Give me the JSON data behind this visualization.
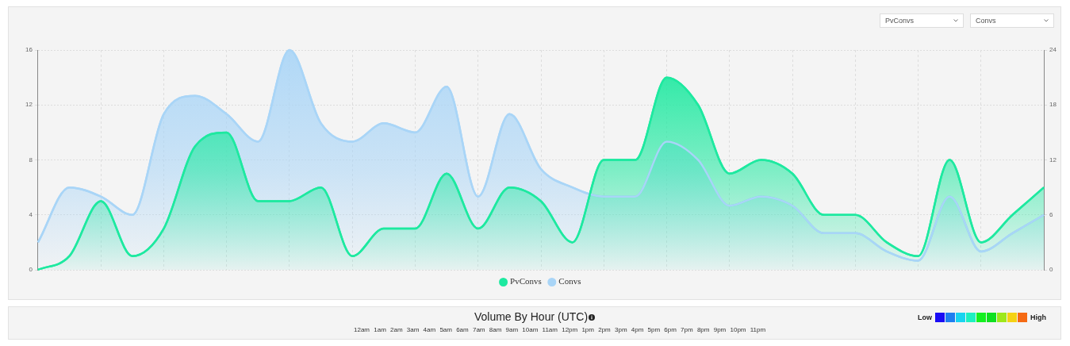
{
  "chart_data": [
    {
      "type": "area",
      "categories": [
        null,
        null,
        null,
        null,
        null,
        null,
        null,
        null,
        null,
        null,
        null,
        null,
        null,
        null,
        null,
        null,
        null,
        null,
        null,
        null,
        null,
        null,
        null,
        null,
        null,
        null,
        null,
        null,
        null,
        null,
        null,
        null,
        null
      ],
      "series": [
        {
          "name": "PvConvs",
          "color": "#1ee9a0",
          "values": [
            0,
            1,
            5,
            1,
            3,
            9,
            10,
            5,
            5,
            6,
            1,
            3,
            3,
            7,
            3,
            6,
            5,
            2,
            8,
            8,
            14,
            12,
            7,
            8,
            7,
            4,
            4,
            2,
            1,
            8,
            2,
            4,
            6
          ]
        },
        {
          "name": "Convs",
          "color": "#a9d5f7",
          "axis": "y2",
          "values": [
            3,
            9,
            8,
            6,
            17,
            19,
            17,
            14,
            24,
            16,
            14,
            16,
            15,
            20,
            8,
            17,
            11,
            9,
            8,
            8,
            14,
            12,
            7,
            8,
            7,
            4,
            4,
            2,
            1,
            8,
            2,
            4,
            6
          ]
        }
      ],
      "ylim": [
        0,
        16
      ],
      "yticks": [
        0,
        4,
        8,
        12,
        16
      ],
      "y2lim": [
        0,
        24
      ],
      "y2ticks": [
        0,
        6,
        12,
        18,
        24
      ],
      "grid": true,
      "legend": "bottom",
      "tick_labels": "y",
      "marker": "none"
    },
    {
      "type": "other",
      "title": "Volume By Hour (UTC)",
      "annotations": [
        "12am 1am 2am 3am 4am 5am 6am 7am 8am 9am 10am 11am 12pm 1pm 2pm 3pm 4pm 5pm 6pm 7pm 8pm 9pm 10pm 11pm",
        "Low",
        "High"
      ]
    }
  ]
}
